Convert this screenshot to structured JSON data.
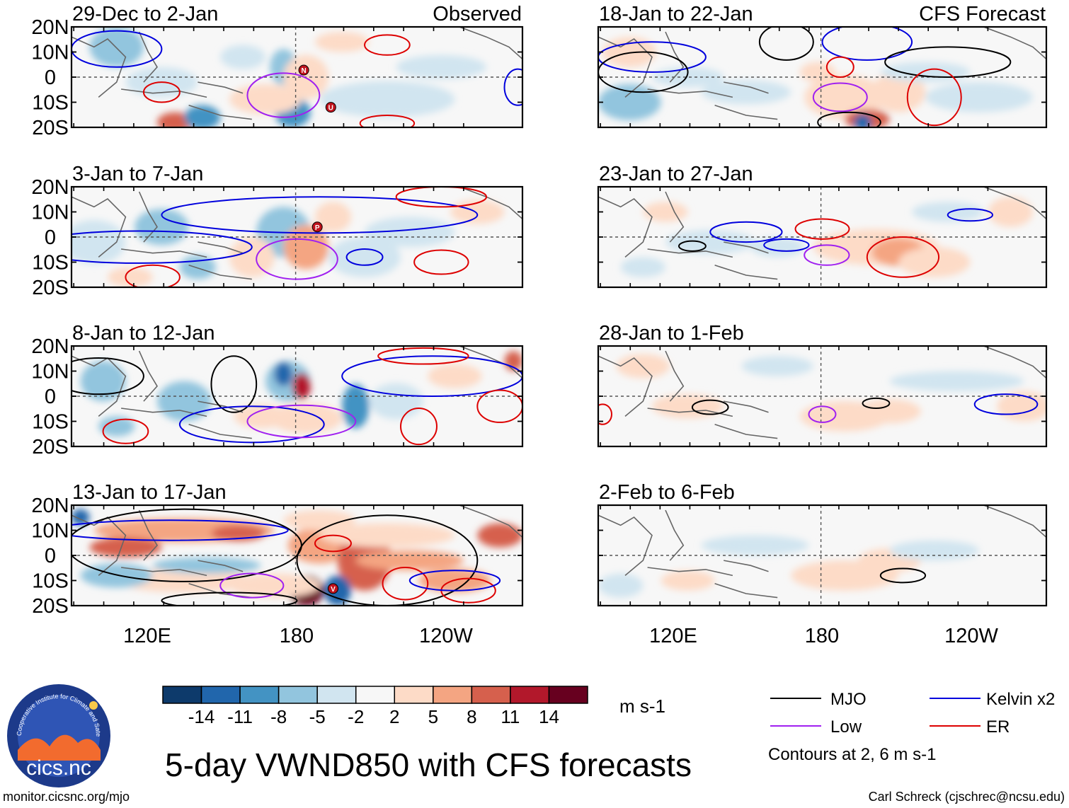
{
  "figure": {
    "main_title": "5-day VWND850 with CFS forecasts",
    "footer_left": "monitor.cicsnc.org/mjo",
    "footer_right": "Carl Schreck (cjschrec@ncsu.edu)",
    "logo_text": "cics.nc",
    "logo_ring_text": "Cooperative Institute for Climate and Satellites"
  },
  "chart_data": {
    "type": "heatmap",
    "variable": "VWND850",
    "units": "m s-1",
    "column_labels": [
      "Observed",
      "CFS Forecast"
    ],
    "lat_ticks": [
      "20N",
      "10N",
      "0",
      "10S",
      "20S"
    ],
    "lon_ticks": [
      "120E",
      "180",
      "120W"
    ],
    "colorbar": {
      "ticks": [
        "-14",
        "-11",
        "-8",
        "-5",
        "-2",
        "2",
        "5",
        "8",
        "11",
        "14"
      ],
      "colors": [
        "#0d3a6b",
        "#2166ac",
        "#4393c3",
        "#92c5de",
        "#d1e5f0",
        "#f7f7f7",
        "#fddbc7",
        "#f4a582",
        "#d6604d",
        "#b2182b",
        "#67001f"
      ]
    },
    "legend": [
      {
        "label": "MJO",
        "color": "#000000"
      },
      {
        "label": "Kelvin x2",
        "color": "#0000dd"
      },
      {
        "label": "Low",
        "color": "#a020f0"
      },
      {
        "label": "ER",
        "color": "#dd0000"
      }
    ],
    "contours_note": "Contours at 2, 6 m s-1",
    "panels": [
      {
        "title": "29-Dec to 2-Jan",
        "kind": "observed",
        "storms": [
          "N",
          "U"
        ]
      },
      {
        "title": "3-Jan to 7-Jan",
        "kind": "observed",
        "storms": [
          "P"
        ]
      },
      {
        "title": "8-Jan to 12-Jan",
        "kind": "observed",
        "storms": []
      },
      {
        "title": "13-Jan to 17-Jan",
        "kind": "observed",
        "storms": [
          "V"
        ]
      },
      {
        "title": "18-Jan to 22-Jan",
        "kind": "forecast",
        "storms": []
      },
      {
        "title": "23-Jan to 27-Jan",
        "kind": "forecast",
        "storms": []
      },
      {
        "title": "28-Jan to 1-Feb",
        "kind": "forecast",
        "storms": []
      },
      {
        "title": "2-Feb to 6-Feb",
        "kind": "forecast",
        "storms": []
      }
    ]
  }
}
